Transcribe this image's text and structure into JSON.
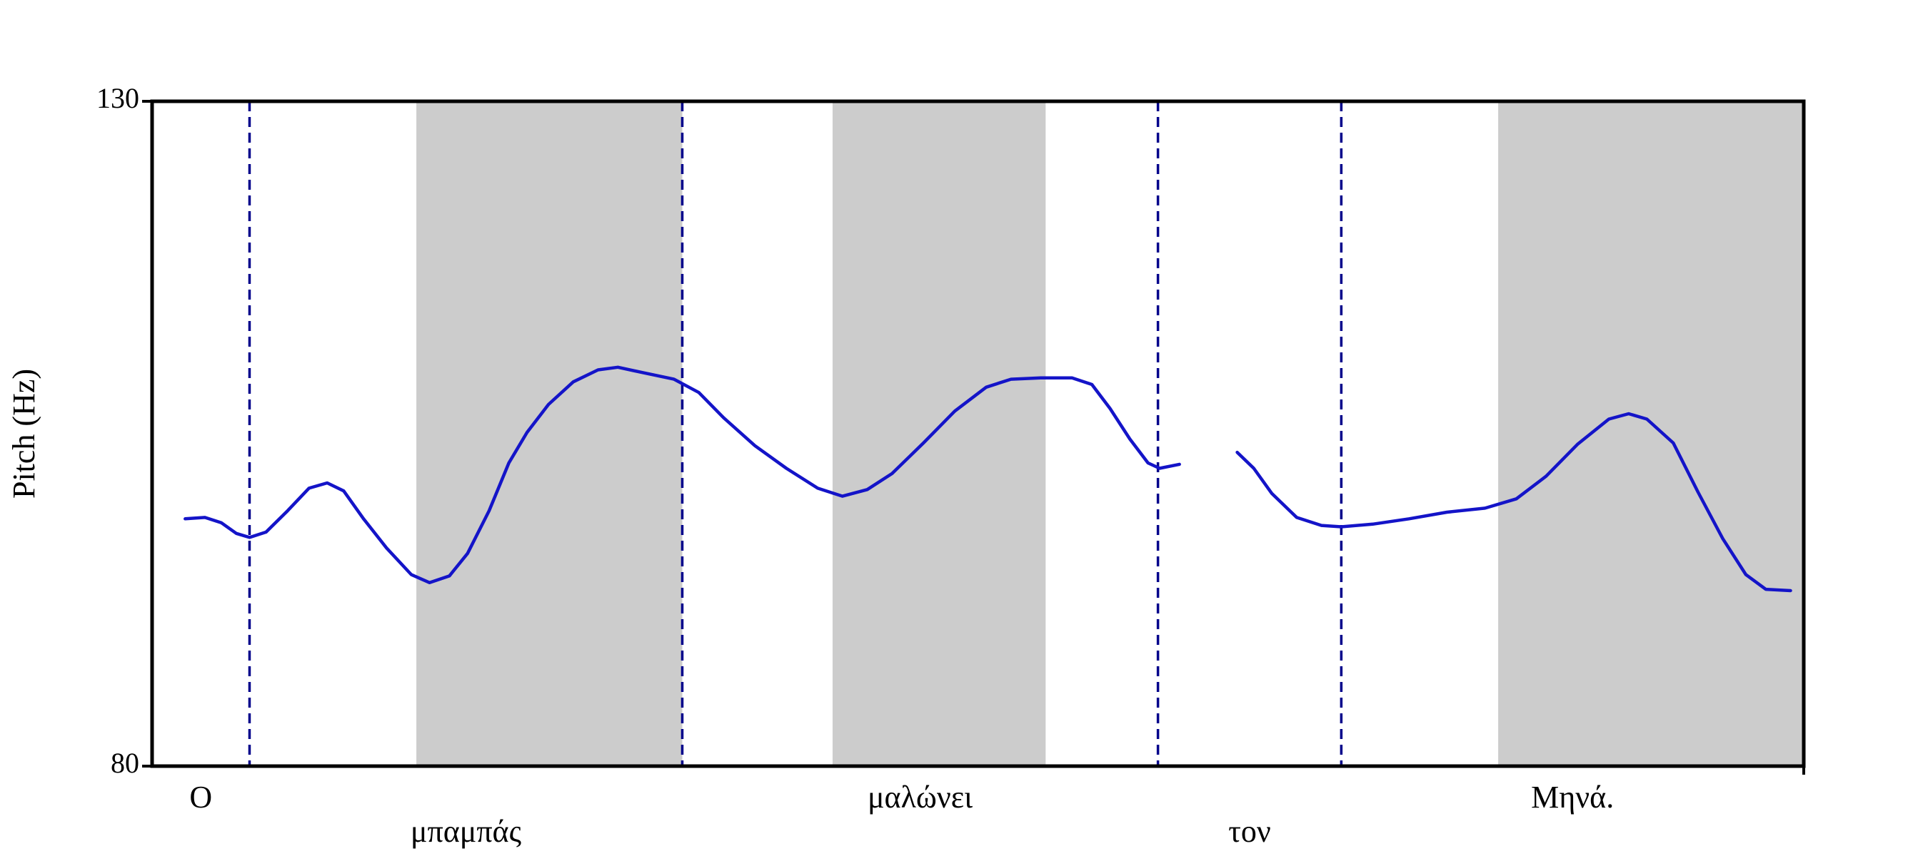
{
  "chart_data": {
    "type": "line",
    "y_label": "Pitch (Hz)",
    "ylim": [
      80,
      130
    ],
    "yticks": [
      80,
      130
    ],
    "xlim": [
      0,
      100
    ],
    "words": [
      "Ο",
      "μπαμπάς",
      "μαλώνει",
      "τον",
      "Μηνά."
    ],
    "boundaries": [
      5.9,
      32.1,
      60.9,
      72.0
    ],
    "boundary_color": "#00008b",
    "shaded": [
      [
        16.0,
        32.1
      ],
      [
        41.2,
        54.1
      ],
      [
        81.5,
        100
      ]
    ],
    "shade_color": "#cccccc",
    "series": [
      {
        "color": "#1414c8",
        "x": [
          2.0,
          3.2,
          4.2,
          5.1,
          5.9,
          6.9,
          8.2,
          9.5,
          10.6,
          11.6,
          12.8,
          14.2,
          15.7,
          16.8,
          18.0,
          19.1,
          20.4,
          21.6,
          22.7,
          24.0,
          25.5,
          27.0,
          28.2,
          29.7,
          31.6,
          33.1,
          34.6,
          36.5,
          38.4,
          40.3,
          41.8,
          43.3,
          44.8,
          46.7,
          48.6,
          50.5,
          52.0,
          53.8,
          55.7,
          56.9,
          58.0,
          59.2,
          60.3,
          61.0,
          62.2,
          64.0,
          65.7,
          66.7,
          67.8,
          69.3,
          70.8,
          72.0,
          73.9,
          76.1,
          78.4,
          80.7,
          82.6,
          84.4,
          86.3,
          88.2,
          89.4,
          90.5,
          92.1,
          93.6,
          95.1,
          96.5,
          97.7,
          99.2
        ],
        "values": [
          98.6,
          98.7,
          98.3,
          97.5,
          97.2,
          97.6,
          99.2,
          100.9,
          101.3,
          100.7,
          98.6,
          96.4,
          94.4,
          93.8,
          94.3,
          96.0,
          99.2,
          102.8,
          105.1,
          107.2,
          108.9,
          109.8,
          110.0,
          109.6,
          109.1,
          108.1,
          106.2,
          104.1,
          102.4,
          100.9,
          100.3,
          100.8,
          102.0,
          104.3,
          106.7,
          108.5,
          109.1,
          109.2,
          109.2,
          108.7,
          106.9,
          104.6,
          102.8,
          102.4,
          102.7,
          null,
          103.6,
          102.4,
          100.5,
          98.7,
          98.1,
          98.0,
          98.2,
          98.6,
          99.1,
          99.4,
          100.1,
          101.8,
          104.2,
          106.1,
          106.5,
          106.1,
          104.3,
          100.6,
          97.1,
          94.4,
          93.3,
          93.2
        ]
      }
    ]
  }
}
